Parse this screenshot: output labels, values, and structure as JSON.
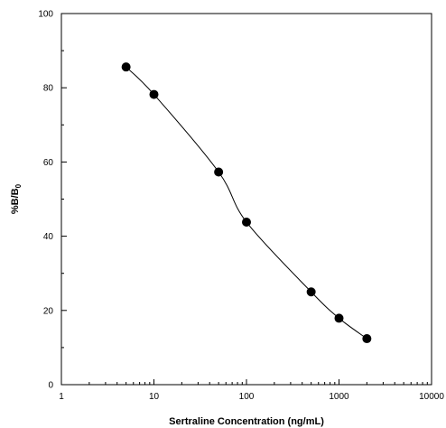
{
  "chart_data": {
    "type": "scatter",
    "title": "",
    "xlabel": "Sertraline Concentration (ng/mL)",
    "ylabel": "%B/B",
    "ylabel_subscript": "0",
    "xscale": "log",
    "xlim": [
      1,
      10000
    ],
    "ylim": [
      0,
      100
    ],
    "xticks": [
      1,
      10,
      100,
      1000,
      10000
    ],
    "xtick_labels": [
      "1",
      "10",
      "100",
      "1000",
      "10000"
    ],
    "yticks": [
      0,
      20,
      40,
      60,
      80,
      100
    ],
    "ytick_labels": [
      "0",
      "20",
      "40",
      "60",
      "80",
      "100"
    ],
    "grid": false,
    "series": [
      {
        "marker": "filled-circle",
        "line": "smooth-curve",
        "color": "#000000",
        "x": [
          5,
          10,
          50,
          100,
          500,
          1000,
          2000
        ],
        "y": [
          85.6,
          78.2,
          57.3,
          43.8,
          25.0,
          17.9,
          12.4
        ]
      }
    ]
  }
}
